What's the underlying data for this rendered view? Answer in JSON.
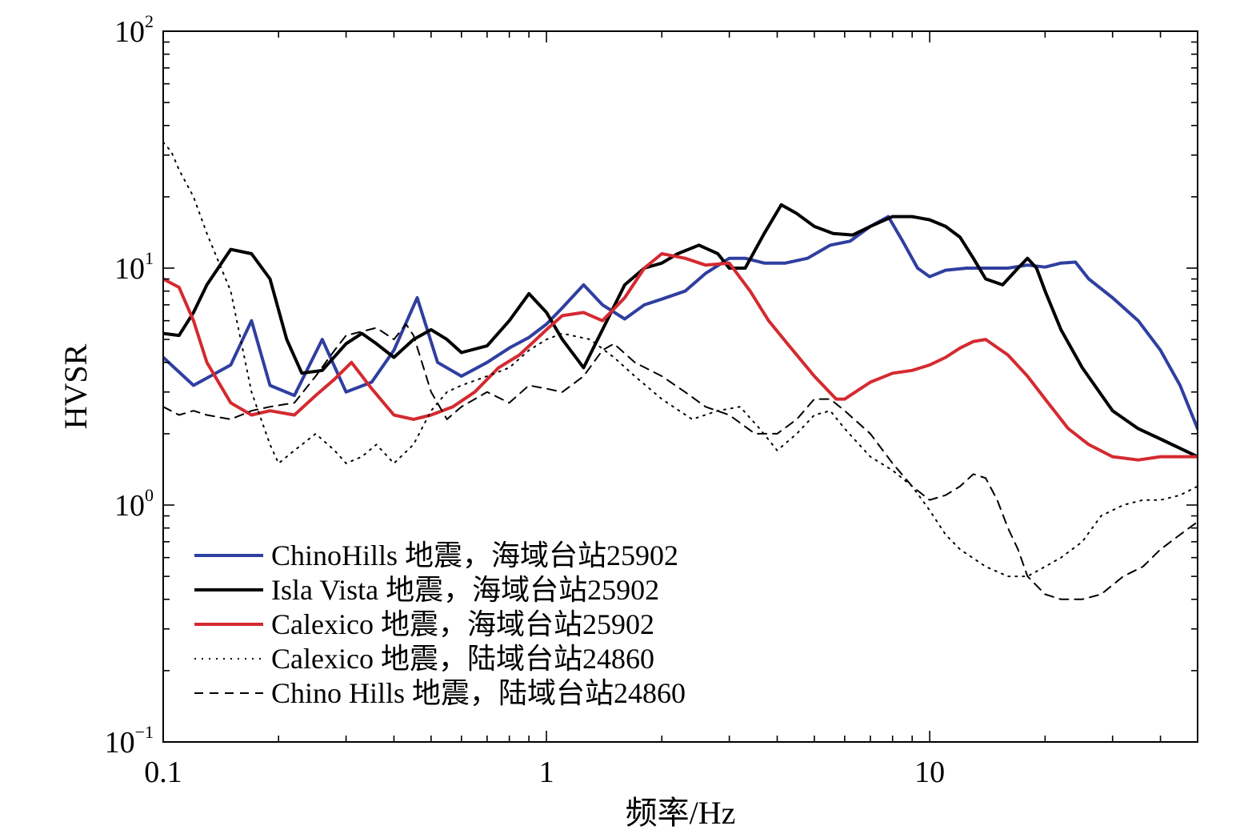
{
  "chart_data": {
    "type": "line",
    "title": "",
    "xlabel": "频率/Hz",
    "ylabel": "HVSR",
    "x_scale": "log",
    "y_scale": "log",
    "xlim": [
      0.1,
      50
    ],
    "ylim": [
      0.1,
      100
    ],
    "x_ticks": [
      {
        "value": 0.1,
        "label": "0.1"
      },
      {
        "value": 1,
        "label": "1"
      },
      {
        "value": 10,
        "label": "10"
      }
    ],
    "y_ticks": [
      {
        "value": 0.1,
        "base": "10",
        "exp": "−1"
      },
      {
        "value": 1,
        "base": "10",
        "exp": "0"
      },
      {
        "value": 10,
        "base": "10",
        "exp": "1"
      },
      {
        "value": 100,
        "base": "10",
        "exp": "2"
      }
    ],
    "grid": false,
    "legend_position": "bottom-left",
    "series": [
      {
        "name": "ChinoHills 地震，海域台站25902",
        "color": "#2f3fa0",
        "dash": "solid",
        "x": [
          0.1,
          0.12,
          0.15,
          0.17,
          0.19,
          0.22,
          0.26,
          0.3,
          0.35,
          0.4,
          0.46,
          0.52,
          0.6,
          0.7,
          0.8,
          0.9,
          1.0,
          1.1,
          1.25,
          1.4,
          1.6,
          1.8,
          2.0,
          2.3,
          2.6,
          3.0,
          3.3,
          3.7,
          4.2,
          4.8,
          5.5,
          6.2,
          7.0,
          7.8,
          8.5,
          9.3,
          10.0,
          11,
          12.5,
          14,
          16,
          18,
          20,
          22,
          24,
          26,
          30,
          35,
          40,
          45,
          50
        ],
        "y": [
          4.2,
          3.2,
          3.9,
          6.0,
          3.2,
          2.9,
          5.0,
          3.0,
          3.3,
          4.5,
          7.5,
          4.0,
          3.5,
          4.0,
          4.6,
          5.1,
          5.8,
          6.8,
          8.5,
          7.0,
          6.1,
          7.0,
          7.4,
          8.0,
          9.5,
          11.0,
          11.0,
          10.5,
          10.5,
          11.0,
          12.5,
          13.0,
          15.0,
          16.5,
          13.0,
          10.0,
          9.2,
          9.8,
          10.0,
          10.0,
          10.0,
          10.3,
          10.1,
          10.5,
          10.6,
          9.0,
          7.5,
          6.0,
          4.5,
          3.2,
          2.1
        ]
      },
      {
        "name": "Isla Vista 地震，海域台站25902",
        "color": "#000000",
        "dash": "solid",
        "x": [
          0.1,
          0.11,
          0.12,
          0.13,
          0.15,
          0.17,
          0.19,
          0.21,
          0.23,
          0.26,
          0.3,
          0.33,
          0.36,
          0.4,
          0.45,
          0.5,
          0.55,
          0.6,
          0.7,
          0.8,
          0.9,
          1.0,
          1.1,
          1.25,
          1.4,
          1.6,
          1.8,
          2.0,
          2.2,
          2.5,
          2.8,
          3.0,
          3.3,
          3.7,
          4.1,
          4.5,
          5.0,
          5.6,
          6.3,
          7.0,
          8.0,
          9.0,
          10.0,
          11.0,
          12.0,
          13.0,
          14.0,
          15.5,
          17,
          18,
          19,
          20,
          22,
          25,
          30,
          35,
          40,
          50
        ],
        "y": [
          5.3,
          5.2,
          6.5,
          8.5,
          12.0,
          11.5,
          9.0,
          5.0,
          3.6,
          3.7,
          4.8,
          5.3,
          4.8,
          4.2,
          5.0,
          5.5,
          5.0,
          4.4,
          4.7,
          6.0,
          7.8,
          6.5,
          5.0,
          3.8,
          5.5,
          8.5,
          10.0,
          10.5,
          11.5,
          12.5,
          11.5,
          10.0,
          10.0,
          14.0,
          18.5,
          17.0,
          15.0,
          14.0,
          13.8,
          15.0,
          16.5,
          16.5,
          16.0,
          15.0,
          13.5,
          11.0,
          9.0,
          8.5,
          10.0,
          11.0,
          10.0,
          8.0,
          5.5,
          3.8,
          2.5,
          2.1,
          1.9,
          1.6
        ]
      },
      {
        "name": "Calexico 地震，海域台站25902",
        "color": "#d42a30",
        "dash": "solid",
        "x": [
          0.1,
          0.11,
          0.12,
          0.13,
          0.15,
          0.17,
          0.19,
          0.22,
          0.25,
          0.28,
          0.31,
          0.35,
          0.4,
          0.45,
          0.5,
          0.57,
          0.65,
          0.75,
          0.85,
          1.0,
          1.1,
          1.25,
          1.4,
          1.6,
          1.8,
          2.0,
          2.3,
          2.6,
          3.0,
          3.4,
          3.8,
          4.3,
          5.0,
          5.7,
          6.0,
          7.0,
          8.0,
          9.0,
          10.0,
          11,
          12,
          13,
          14,
          16,
          18,
          20,
          23,
          26,
          30,
          35,
          40,
          45,
          50
        ],
        "y": [
          9.0,
          8.3,
          6.0,
          4.0,
          2.7,
          2.4,
          2.5,
          2.4,
          2.9,
          3.4,
          4.0,
          3.1,
          2.4,
          2.3,
          2.4,
          2.6,
          3.0,
          3.8,
          4.3,
          5.5,
          6.3,
          6.5,
          6.0,
          7.5,
          10.0,
          11.5,
          11.0,
          10.3,
          10.5,
          8.0,
          6.0,
          4.7,
          3.5,
          2.8,
          2.8,
          3.3,
          3.6,
          3.7,
          3.9,
          4.2,
          4.6,
          4.9,
          5.0,
          4.3,
          3.5,
          2.8,
          2.1,
          1.8,
          1.6,
          1.55,
          1.6,
          1.6,
          1.6
        ]
      },
      {
        "name": "Calexico 地震，陆域台站24860",
        "color": "#000000",
        "dash": "dotted",
        "x": [
          0.1,
          0.105,
          0.11,
          0.12,
          0.13,
          0.15,
          0.17,
          0.19,
          0.2,
          0.22,
          0.25,
          0.28,
          0.3,
          0.33,
          0.36,
          0.4,
          0.45,
          0.5,
          0.55,
          0.6,
          0.7,
          0.8,
          0.9,
          1.0,
          1.1,
          1.3,
          1.5,
          1.7,
          2.0,
          2.4,
          2.8,
          3.2,
          3.6,
          4.0,
          4.5,
          5.0,
          5.5,
          6.0,
          7.0,
          8.0,
          9.0,
          10.0,
          11,
          12,
          14,
          16,
          18,
          20,
          22,
          25,
          28,
          32,
          36,
          40,
          45,
          50
        ],
        "y": [
          34,
          31,
          26,
          20,
          14,
          8.0,
          3.0,
          1.8,
          1.5,
          1.7,
          2.0,
          1.7,
          1.5,
          1.6,
          1.8,
          1.5,
          1.8,
          2.5,
          3.0,
          3.2,
          3.5,
          3.8,
          4.5,
          5.0,
          5.3,
          5.0,
          4.2,
          3.5,
          2.8,
          2.3,
          2.5,
          2.6,
          2.1,
          1.7,
          2.0,
          2.4,
          2.5,
          2.1,
          1.6,
          1.4,
          1.2,
          0.95,
          0.75,
          0.65,
          0.55,
          0.5,
          0.5,
          0.55,
          0.6,
          0.7,
          0.9,
          1.0,
          1.05,
          1.05,
          1.1,
          1.2
        ]
      },
      {
        "name": "Chino Hills 地震，陆域台站24860",
        "color": "#000000",
        "dash": "dashed",
        "x": [
          0.1,
          0.11,
          0.12,
          0.13,
          0.15,
          0.17,
          0.19,
          0.22,
          0.25,
          0.28,
          0.3,
          0.33,
          0.36,
          0.4,
          0.43,
          0.45,
          0.5,
          0.55,
          0.6,
          0.7,
          0.8,
          0.9,
          1.0,
          1.1,
          1.25,
          1.4,
          1.5,
          1.7,
          2.0,
          2.3,
          2.6,
          3.0,
          3.5,
          4.0,
          4.5,
          5.0,
          5.5,
          6.0,
          7.0,
          8.0,
          9.0,
          10.0,
          11,
          12,
          13,
          14,
          15,
          16,
          17,
          18,
          20,
          22,
          25,
          28,
          32,
          36,
          40,
          45,
          50
        ],
        "y": [
          2.6,
          2.4,
          2.5,
          2.4,
          2.3,
          2.5,
          2.6,
          2.7,
          3.5,
          4.5,
          5.2,
          5.4,
          5.6,
          5.0,
          5.8,
          5.2,
          3.0,
          2.3,
          2.6,
          3.0,
          2.7,
          3.2,
          3.1,
          3.0,
          3.5,
          4.5,
          4.8,
          4.0,
          3.5,
          3.0,
          2.6,
          2.4,
          2.0,
          2.0,
          2.3,
          2.8,
          2.8,
          2.5,
          2.0,
          1.5,
          1.2,
          1.05,
          1.1,
          1.2,
          1.35,
          1.3,
          1.05,
          0.8,
          0.65,
          0.5,
          0.42,
          0.4,
          0.4,
          0.42,
          0.5,
          0.55,
          0.65,
          0.75,
          0.85
        ]
      }
    ]
  }
}
